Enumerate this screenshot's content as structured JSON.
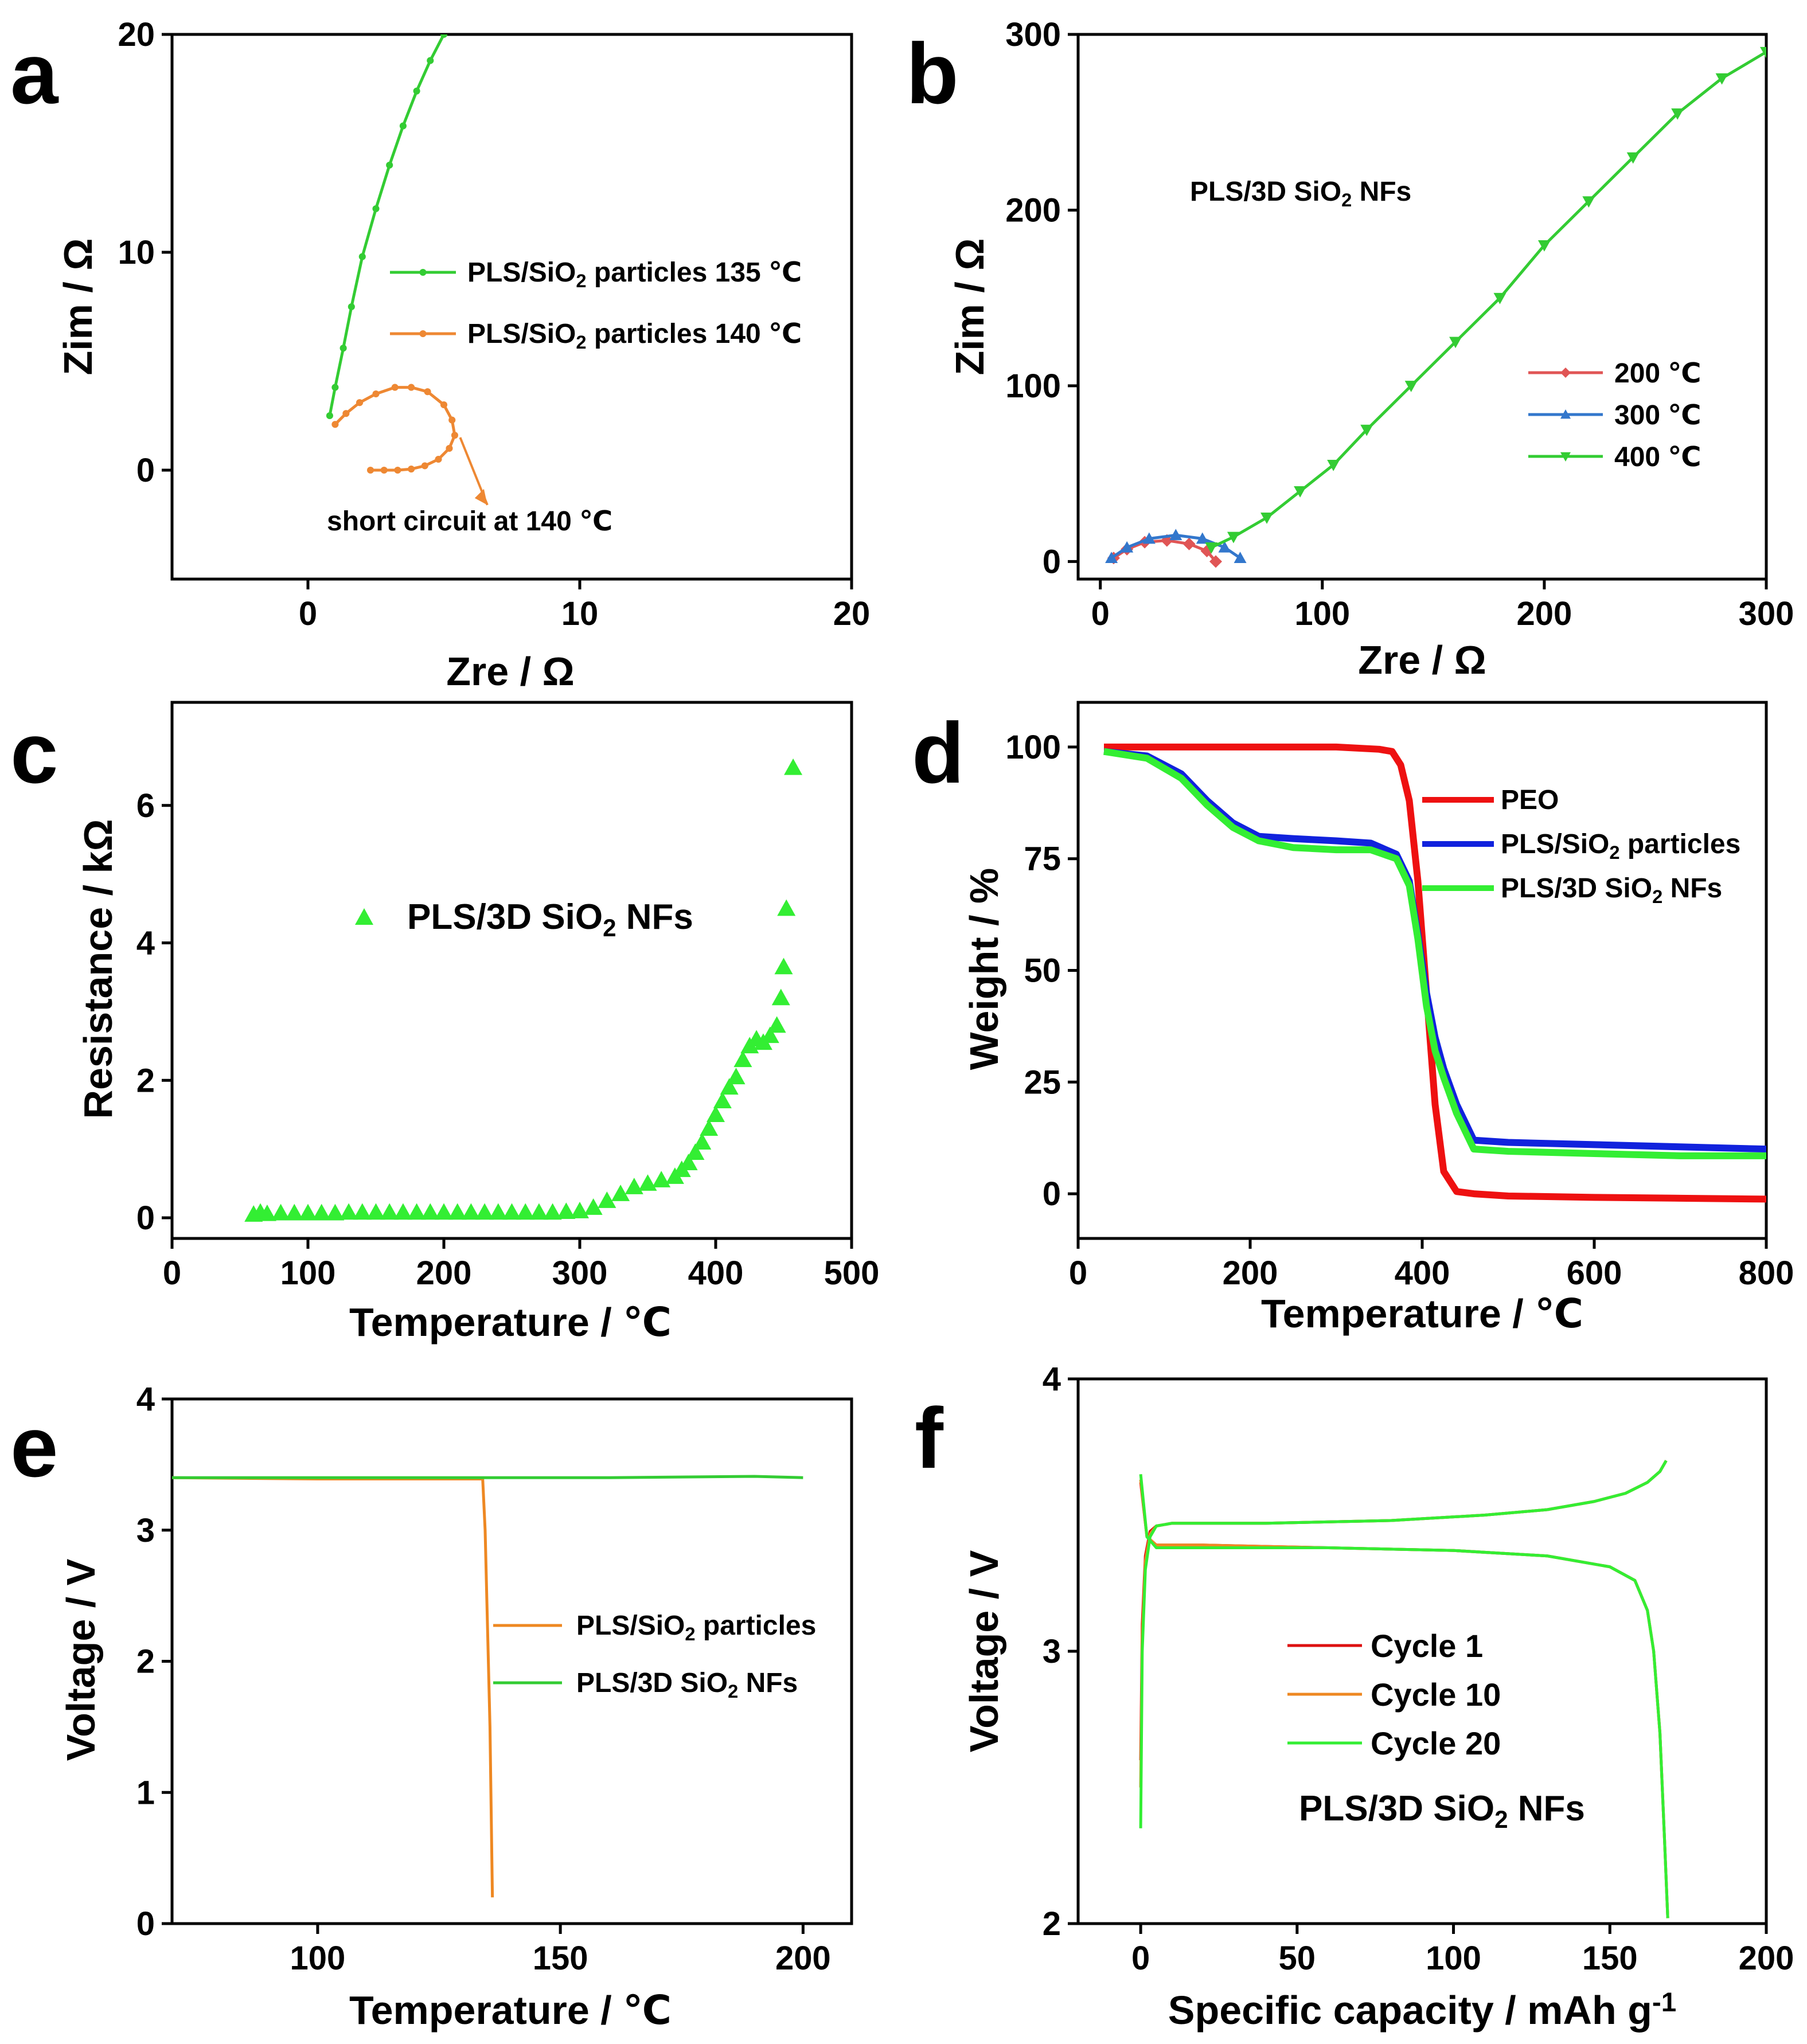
{
  "chart_data": [
    {
      "id": "a",
      "panel_letter": "a",
      "type": "line",
      "xlabel": "Zre / Ω",
      "ylabel": "Zim / Ω",
      "xlim": [
        -5,
        20
      ],
      "ylim": [
        -5,
        20
      ],
      "xticks": [
        0,
        10,
        20
      ],
      "yticks": [
        0,
        10,
        20
      ],
      "series": [
        {
          "name": "PLS/SiO2 particles 135 ℃",
          "label_parts": [
            "PLS/SiO",
            "2",
            " particles 135 ℃"
          ],
          "color": "#33cc33",
          "marker": "circle",
          "x": [
            0.8,
            1.0,
            1.3,
            1.6,
            2.0,
            2.5,
            3.0,
            3.5,
            4.0,
            4.5,
            5.0
          ],
          "y": [
            2.5,
            3.8,
            5.6,
            7.5,
            9.8,
            12.0,
            14.0,
            15.8,
            17.4,
            18.8,
            20.0
          ]
        },
        {
          "name": "PLS/SiO2 particles 140 ℃",
          "label_parts": [
            "PLS/SiO",
            "2",
            " particles 140 ℃"
          ],
          "color": "#ee8833",
          "marker": "circle",
          "x": [
            1.0,
            1.4,
            1.9,
            2.5,
            3.2,
            3.8,
            4.4,
            5.0,
            5.3,
            5.4,
            5.2,
            4.8,
            4.3,
            3.8,
            3.3,
            2.8,
            2.3
          ],
          "y": [
            2.1,
            2.6,
            3.1,
            3.5,
            3.8,
            3.8,
            3.6,
            3.0,
            2.3,
            1.6,
            1.0,
            0.5,
            0.2,
            0.05,
            0.0,
            0.0,
            0.0
          ]
        }
      ],
      "annotations": [
        {
          "text": "short circuit at 140 ℃",
          "arrow_from": [
            5.6,
            1.5
          ],
          "arrow_to": [
            6.6,
            -1.6
          ]
        }
      ]
    },
    {
      "id": "b",
      "panel_letter": "b",
      "type": "line",
      "xlabel": "Zre / Ω",
      "ylabel": "Zim / Ω",
      "xlim": [
        -10,
        300
      ],
      "ylim": [
        -10,
        300
      ],
      "xticks": [
        0,
        100,
        200,
        300
      ],
      "yticks": [
        0,
        100,
        200,
        300
      ],
      "title_parts": [
        "PLS/3D SiO",
        "2",
        " NFs"
      ],
      "series": [
        {
          "name": "200 ℃",
          "color": "#e05555",
          "marker": "diamond",
          "x": [
            6,
            12,
            20,
            30,
            40,
            48,
            52
          ],
          "y": [
            2,
            7,
            11,
            12,
            10,
            6,
            0
          ]
        },
        {
          "name": "300 ℃",
          "color": "#3377cc",
          "marker": "triangle",
          "x": [
            5,
            12,
            22,
            34,
            46,
            56,
            63
          ],
          "y": [
            2,
            8,
            13,
            15,
            13,
            8,
            2
          ]
        },
        {
          "name": "400 ℃",
          "color": "#33cc33",
          "marker": "triangle-down",
          "x": [
            50,
            60,
            75,
            90,
            105,
            120,
            140,
            160,
            180,
            200,
            220,
            240,
            260,
            280,
            300
          ],
          "y": [
            8,
            14,
            25,
            40,
            55,
            75,
            100,
            125,
            150,
            180,
            205,
            230,
            255,
            275,
            290
          ]
        }
      ]
    },
    {
      "id": "c",
      "panel_letter": "c",
      "type": "scatter",
      "xlabel": "Temperature / ℃",
      "ylabel": "Resistance / kΩ",
      "xlim": [
        0,
        500
      ],
      "ylim": [
        -0.3,
        7.5
      ],
      "xticks": [
        0,
        100,
        200,
        300,
        400,
        500
      ],
      "yticks": [
        0,
        2,
        4,
        6
      ],
      "series": [
        {
          "name": "PLS/3D SiO2 NFs",
          "label_parts": [
            "PLS/3D SiO",
            "2",
            " NFs"
          ],
          "color": "#33ee33",
          "marker": "triangle",
          "x": [
            60,
            65,
            70,
            80,
            90,
            100,
            110,
            120,
            130,
            140,
            150,
            160,
            170,
            180,
            190,
            200,
            210,
            220,
            230,
            240,
            250,
            260,
            270,
            280,
            290,
            300,
            310,
            320,
            330,
            340,
            350,
            360,
            370,
            375,
            380,
            385,
            390,
            395,
            400,
            405,
            410,
            415,
            420,
            425,
            430,
            435,
            440,
            445,
            448,
            450,
            452,
            457
          ],
          "y": [
            0.05,
            0.08,
            0.06,
            0.07,
            0.07,
            0.07,
            0.07,
            0.07,
            0.08,
            0.08,
            0.08,
            0.08,
            0.08,
            0.08,
            0.08,
            0.08,
            0.08,
            0.08,
            0.08,
            0.08,
            0.08,
            0.08,
            0.08,
            0.08,
            0.09,
            0.1,
            0.15,
            0.25,
            0.35,
            0.45,
            0.5,
            0.55,
            0.6,
            0.7,
            0.8,
            0.95,
            1.1,
            1.3,
            1.5,
            1.7,
            1.9,
            2.05,
            2.3,
            2.5,
            2.6,
            2.55,
            2.65,
            2.8,
            3.2,
            3.65,
            4.5,
            6.55
          ]
        }
      ]
    },
    {
      "id": "d",
      "panel_letter": "d",
      "type": "line",
      "xlabel": "Temperature / ℃",
      "ylabel": "Weight / %",
      "xlim": [
        0,
        800
      ],
      "ylim": [
        -10,
        110
      ],
      "xticks": [
        0,
        200,
        400,
        600,
        800
      ],
      "yticks": [
        0,
        25,
        50,
        75,
        100
      ],
      "series": [
        {
          "name": "PEO",
          "label_parts": [
            "PEO"
          ],
          "color": "#ee1111",
          "x": [
            30,
            100,
            200,
            300,
            350,
            365,
            375,
            385,
            395,
            405,
            415,
            425,
            440,
            460,
            500,
            600,
            700,
            800
          ],
          "y": [
            100,
            100,
            100,
            100,
            99.5,
            99,
            96,
            88,
            70,
            45,
            20,
            5,
            0.5,
            0,
            -0.5,
            -0.8,
            -1,
            -1.2
          ]
        },
        {
          "name": "PLS/SiO2 particles",
          "label_parts": [
            "PLS/SiO",
            "2",
            " particles"
          ],
          "color": "#1122dd",
          "x": [
            30,
            80,
            120,
            150,
            180,
            210,
            250,
            300,
            340,
            370,
            385,
            395,
            405,
            415,
            425,
            440,
            460,
            500,
            600,
            700,
            800
          ],
          "y": [
            99,
            98,
            94,
            88,
            83,
            80,
            79.5,
            79,
            78.5,
            76,
            70,
            58,
            45,
            35,
            28,
            20,
            12,
            11.5,
            11,
            10.5,
            10
          ]
        },
        {
          "name": "PLS/3D SiO2 NFs",
          "label_parts": [
            "PLS/3D SiO",
            "2",
            " NFs"
          ],
          "color": "#33ee33",
          "x": [
            30,
            80,
            120,
            150,
            180,
            210,
            250,
            300,
            340,
            370,
            385,
            395,
            405,
            415,
            425,
            440,
            460,
            500,
            600,
            700,
            800
          ],
          "y": [
            99,
            97.5,
            93,
            87,
            82,
            79,
            77.5,
            77,
            77,
            75,
            69,
            57,
            42,
            32,
            26,
            18,
            10,
            9.5,
            9,
            8.5,
            8.5
          ]
        }
      ]
    },
    {
      "id": "e",
      "panel_letter": "e",
      "type": "line",
      "xlabel": "Temperature / ℃",
      "ylabel": "Voltage / V",
      "xlim": [
        70,
        210
      ],
      "ylim": [
        0,
        4
      ],
      "xticks": [
        100,
        150,
        200
      ],
      "yticks": [
        0,
        1,
        2,
        3,
        4
      ],
      "series": [
        {
          "name": "PLS/SiO2 particles",
          "label_parts": [
            "PLS/SiO",
            "2",
            " particles"
          ],
          "color": "#ee8822",
          "x": [
            70,
            100,
            120,
            134,
            134.5,
            135.5,
            136
          ],
          "y": [
            3.4,
            3.39,
            3.39,
            3.39,
            3.0,
            1.5,
            0.2
          ]
        },
        {
          "name": "PLS/3D SiO2 NFs",
          "label_parts": [
            "PLS/3D SiO",
            "2",
            " NFs"
          ],
          "color": "#33cc33",
          "x": [
            70,
            100,
            130,
            160,
            190,
            200
          ],
          "y": [
            3.4,
            3.4,
            3.4,
            3.4,
            3.41,
            3.4
          ]
        }
      ]
    },
    {
      "id": "f",
      "panel_letter": "f",
      "type": "line",
      "xlabel_parts": [
        "Specific capacity  / mAh g",
        "-1"
      ],
      "ylabel": "Voltage / V",
      "xlim": [
        -20,
        200
      ],
      "ylim": [
        2,
        4
      ],
      "xticks": [
        0,
        50,
        100,
        150,
        200
      ],
      "yticks": [
        2,
        3,
        4
      ],
      "title_parts": [
        "PLS/3D SiO",
        "2",
        " NFs"
      ],
      "series": [
        {
          "name": "Cycle 1",
          "color": "#dd1111",
          "charge_x": [
            0,
            0.5,
            1.5,
            3,
            5,
            10,
            40,
            80,
            110,
            130,
            145,
            155,
            162,
            166,
            168
          ],
          "charge_y": [
            2.6,
            3.1,
            3.35,
            3.44,
            3.46,
            3.47,
            3.47,
            3.48,
            3.5,
            3.52,
            3.55,
            3.58,
            3.62,
            3.66,
            3.7
          ],
          "discharge_x": [
            0,
            2,
            5,
            20,
            60,
            100,
            130,
            150,
            158,
            162,
            164,
            166,
            167.5,
            168.5
          ],
          "discharge_y": [
            3.62,
            3.42,
            3.39,
            3.39,
            3.38,
            3.37,
            3.35,
            3.31,
            3.26,
            3.15,
            3.0,
            2.7,
            2.3,
            2.02
          ]
        },
        {
          "name": "Cycle 10",
          "color": "#ee8822",
          "charge_x": [
            0,
            0.5,
            1.5,
            3,
            5,
            10,
            40,
            80,
            110,
            130,
            145,
            155,
            162,
            166,
            168
          ],
          "charge_y": [
            2.5,
            3.05,
            3.33,
            3.43,
            3.46,
            3.47,
            3.47,
            3.48,
            3.5,
            3.52,
            3.55,
            3.58,
            3.62,
            3.66,
            3.7
          ],
          "discharge_x": [
            0,
            2,
            5,
            20,
            60,
            100,
            130,
            150,
            158,
            162,
            164,
            166,
            167.5,
            168.5
          ],
          "discharge_y": [
            3.63,
            3.42,
            3.39,
            3.39,
            3.38,
            3.37,
            3.35,
            3.31,
            3.26,
            3.15,
            3.0,
            2.7,
            2.3,
            2.02
          ]
        },
        {
          "name": "Cycle 20",
          "color": "#33ee33",
          "charge_x": [
            0,
            0.5,
            1.5,
            3,
            5,
            10,
            40,
            80,
            110,
            130,
            145,
            155,
            162,
            166,
            168
          ],
          "charge_y": [
            2.35,
            3.0,
            3.3,
            3.42,
            3.46,
            3.47,
            3.47,
            3.48,
            3.5,
            3.52,
            3.55,
            3.58,
            3.62,
            3.66,
            3.7
          ],
          "discharge_x": [
            0,
            2,
            5,
            20,
            60,
            100,
            130,
            150,
            158,
            162,
            164,
            166,
            167.5,
            168.5
          ],
          "discharge_y": [
            3.65,
            3.42,
            3.38,
            3.38,
            3.38,
            3.37,
            3.35,
            3.31,
            3.26,
            3.15,
            3.0,
            2.7,
            2.3,
            2.02
          ]
        }
      ]
    }
  ]
}
